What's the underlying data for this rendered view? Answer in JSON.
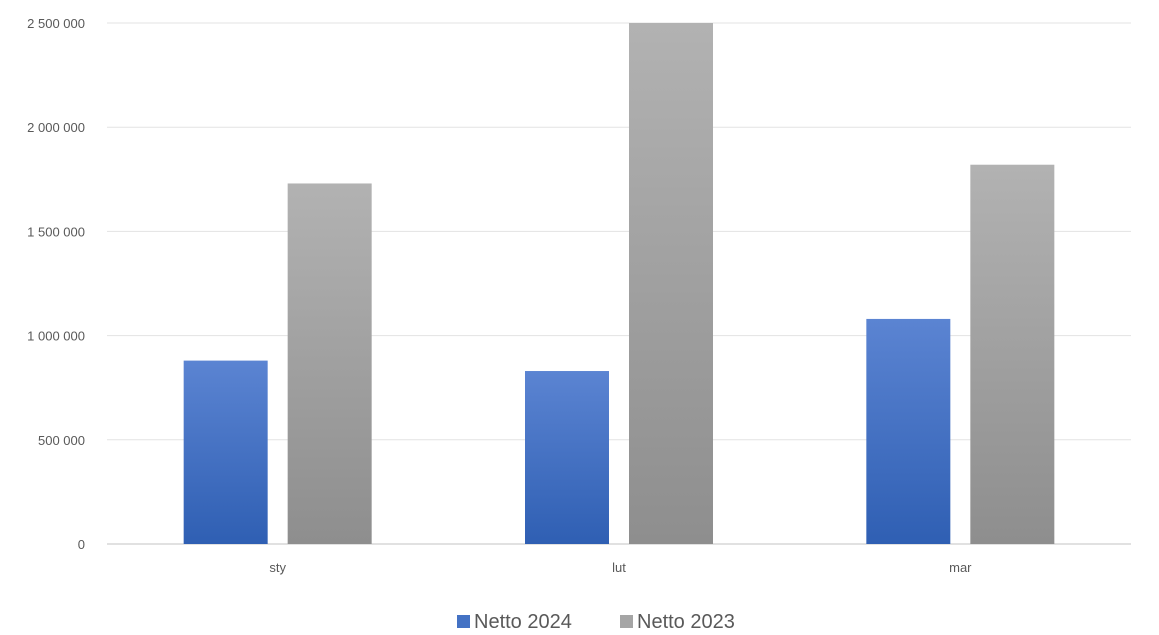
{
  "chart_data": {
    "type": "bar",
    "title": "",
    "xlabel": "",
    "ylabel": "",
    "categories": [
      "sty",
      "lut",
      "mar"
    ],
    "series": [
      {
        "name": "Netto 2024",
        "values": [
          880000,
          830000,
          1080000
        ],
        "color": "#4472c4"
      },
      {
        "name": "Netto 2023",
        "values": [
          1730000,
          2500000,
          1820000
        ],
        "color": "#a5a5a5"
      }
    ],
    "ylim": [
      0,
      2500000
    ],
    "yticks": [
      0,
      500000,
      1000000,
      1500000,
      2000000,
      2500000
    ],
    "ytick_labels": [
      "0",
      "500 000",
      "1 000 000",
      "1 500 000",
      "2 000 000",
      "2 500 000"
    ],
    "grid": true,
    "legend_position": "bottom"
  }
}
